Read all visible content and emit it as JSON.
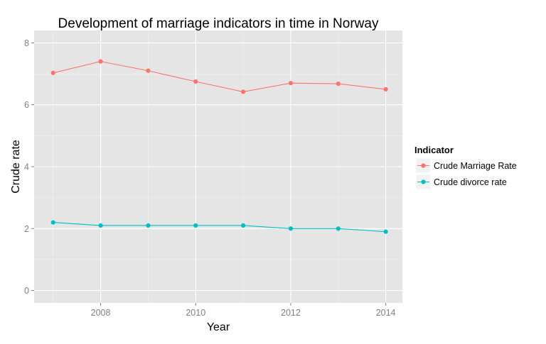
{
  "chart_data": {
    "type": "line",
    "title": "Development of marriage indicators in time in Norway",
    "xlabel": "Year",
    "ylabel": "Crude rate",
    "x": [
      2007,
      2008,
      2009,
      2010,
      2011,
      2012,
      2013,
      2014
    ],
    "xlim": [
      2006.6,
      2014.35
    ],
    "ylim": [
      -0.4,
      8.4
    ],
    "xticks": [
      2008,
      2010,
      2012,
      2014
    ],
    "yticks": [
      0,
      2,
      4,
      6,
      8
    ],
    "grid": true,
    "legend": {
      "title": "Indicator",
      "position": "right"
    },
    "series": [
      {
        "name": "Crude Marriage Rate",
        "color": "#F8766D",
        "values": [
          7.03,
          7.4,
          7.1,
          6.75,
          6.42,
          6.7,
          6.68,
          6.5
        ]
      },
      {
        "name": "Crude divorce rate",
        "color": "#00BFC4",
        "values": [
          2.2,
          2.1,
          2.1,
          2.1,
          2.1,
          2.0,
          2.0,
          1.9
        ]
      }
    ]
  }
}
